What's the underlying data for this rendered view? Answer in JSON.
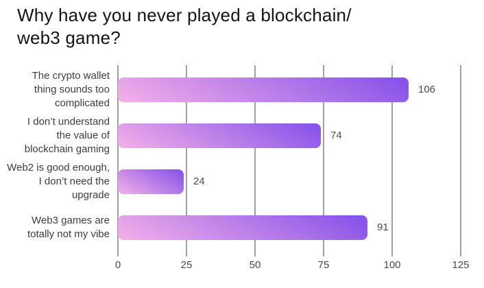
{
  "title": {
    "line1": "Why have you never played a blockchain/",
    "line2": "web3 game?"
  },
  "chart_data": {
    "type": "bar",
    "orientation": "horizontal",
    "title": "Why have you never played a blockchain/web3 game?",
    "categories": [
      "The crypto wallet\nthing sounds too\ncomplicated",
      "I don’t understand\nthe value of\nblockchain gaming",
      "Web2 is good enough,\nI don’t need the\nupgrade",
      "Web3 games are\ntotally not my vibe"
    ],
    "values": [
      106,
      74,
      24,
      91
    ],
    "value_labels": [
      "106",
      "74",
      "24",
      "91"
    ],
    "xlim": [
      0,
      125
    ],
    "x_ticks": [
      0,
      25,
      50,
      75,
      100,
      125
    ],
    "x_tick_labels": [
      "0",
      "25",
      "50",
      "75",
      "100",
      "125"
    ],
    "grid": "vertical-gridlines-on",
    "legend": "none",
    "colors": {
      "bar_gradient_start": "#f4b0e8",
      "bar_gradient_end": "#8350e9",
      "gridline": "#a0a0a0",
      "category_label": "#3d3d3d",
      "value_label": "#4a4a4a",
      "tick_label": "#4a4a4a",
      "title": "#141414",
      "background": "#ffffff"
    }
  }
}
